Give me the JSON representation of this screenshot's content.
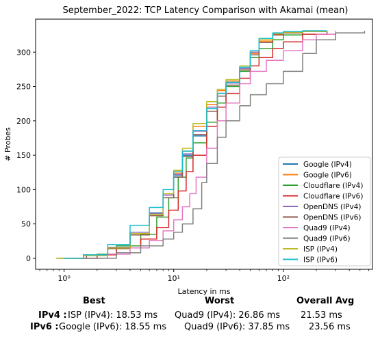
{
  "chart_data": {
    "type": "line",
    "title": "September_2022: TCP Latency Comparison with Akamai (mean)",
    "xlabel": "Latency in ms",
    "ylabel": "# Probes",
    "xscale": "log",
    "xlim": [
      0.55,
      650
    ],
    "ylim": [
      -16,
      348
    ],
    "x_ticks": [
      {
        "value": 1,
        "label": "10⁰"
      },
      {
        "value": 10,
        "label": "10¹"
      },
      {
        "value": 100,
        "label": "10²"
      }
    ],
    "y_ticks": [
      0,
      50,
      100,
      150,
      200,
      250,
      300
    ],
    "grid": false,
    "legend_position": "lower-right",
    "series": [
      {
        "name": "Google (IPv4)",
        "color": "#1f77b4",
        "points": [
          [
            0.85,
            0
          ],
          [
            1.5,
            5
          ],
          [
            2.5,
            16
          ],
          [
            4,
            38
          ],
          [
            6,
            66
          ],
          [
            8,
            92
          ],
          [
            10,
            120
          ],
          [
            12,
            150
          ],
          [
            15,
            178
          ],
          [
            20,
            218
          ],
          [
            25,
            240
          ],
          [
            30,
            256
          ],
          [
            40,
            278
          ],
          [
            50,
            300
          ],
          [
            60,
            318
          ],
          [
            80,
            327
          ],
          [
            100,
            329
          ],
          [
            150,
            331
          ],
          [
            250,
            331
          ]
        ]
      },
      {
        "name": "Google (IPv6)",
        "color": "#ff7f0e",
        "points": [
          [
            0.9,
            0
          ],
          [
            1.5,
            4
          ],
          [
            2.5,
            15
          ],
          [
            4,
            36
          ],
          [
            6,
            64
          ],
          [
            8,
            92
          ],
          [
            10,
            124
          ],
          [
            12,
            156
          ],
          [
            15,
            192
          ],
          [
            20,
            224
          ],
          [
            25,
            244
          ],
          [
            30,
            258
          ],
          [
            40,
            276
          ],
          [
            50,
            298
          ],
          [
            60,
            316
          ],
          [
            80,
            326
          ],
          [
            100,
            329
          ],
          [
            150,
            330
          ],
          [
            250,
            331
          ]
        ]
      },
      {
        "name": "Cloudflare (IPv4)",
        "color": "#2ca02c",
        "points": [
          [
            1.3,
            0
          ],
          [
            2,
            6
          ],
          [
            3,
            18
          ],
          [
            5,
            35
          ],
          [
            7,
            60
          ],
          [
            9,
            88
          ],
          [
            11,
            118
          ],
          [
            13,
            146
          ],
          [
            15,
            168
          ],
          [
            20,
            198
          ],
          [
            25,
            226
          ],
          [
            30,
            250
          ],
          [
            40,
            272
          ],
          [
            50,
            292
          ],
          [
            60,
            305
          ],
          [
            80,
            318
          ],
          [
            100,
            325
          ],
          [
            150,
            330
          ],
          [
            250,
            331
          ]
        ]
      },
      {
        "name": "Cloudflare (IPv6)",
        "color": "#d62728",
        "points": [
          [
            1.4,
            0
          ],
          [
            2,
            5
          ],
          [
            3,
            15
          ],
          [
            5,
            28
          ],
          [
            7,
            45
          ],
          [
            9,
            70
          ],
          [
            11,
            98
          ],
          [
            13,
            126
          ],
          [
            15,
            150
          ],
          [
            20,
            192
          ],
          [
            25,
            220
          ],
          [
            30,
            240
          ],
          [
            40,
            262
          ],
          [
            50,
            280
          ],
          [
            60,
            292
          ],
          [
            80,
            305
          ],
          [
            100,
            315
          ],
          [
            150,
            326
          ],
          [
            250,
            331
          ]
        ]
      },
      {
        "name": "OpenDNS (IPv4)",
        "color": "#9467bd",
        "points": [
          [
            0.9,
            0
          ],
          [
            1.5,
            5
          ],
          [
            2.5,
            16
          ],
          [
            4,
            38
          ],
          [
            6,
            65
          ],
          [
            8,
            92
          ],
          [
            10,
            122
          ],
          [
            12,
            152
          ],
          [
            15,
            185
          ],
          [
            20,
            220
          ],
          [
            25,
            240
          ],
          [
            30,
            255
          ],
          [
            40,
            276
          ],
          [
            50,
            300
          ],
          [
            60,
            318
          ],
          [
            80,
            327
          ],
          [
            100,
            329
          ],
          [
            150,
            330
          ],
          [
            250,
            331
          ]
        ]
      },
      {
        "name": "OpenDNS (IPv6)",
        "color": "#8c564b",
        "points": [
          [
            1,
            0
          ],
          [
            1.6,
            4
          ],
          [
            2.5,
            14
          ],
          [
            4,
            34
          ],
          [
            6,
            62
          ],
          [
            8,
            88
          ],
          [
            10,
            118
          ],
          [
            12,
            148
          ],
          [
            15,
            180
          ],
          [
            20,
            214
          ],
          [
            25,
            236
          ],
          [
            30,
            252
          ],
          [
            40,
            274
          ],
          [
            50,
            296
          ],
          [
            60,
            314
          ],
          [
            80,
            325
          ],
          [
            100,
            328
          ],
          [
            150,
            330
          ],
          [
            250,
            331
          ]
        ]
      },
      {
        "name": "Quad9 (IPv4)",
        "color": "#e377c2",
        "points": [
          [
            1.5,
            0
          ],
          [
            2.5,
            6
          ],
          [
            4,
            15
          ],
          [
            6,
            26
          ],
          [
            8,
            40
          ],
          [
            10,
            56
          ],
          [
            12,
            75
          ],
          [
            14,
            94
          ],
          [
            16,
            118
          ],
          [
            20,
            160
          ],
          [
            25,
            200
          ],
          [
            30,
            226
          ],
          [
            40,
            254
          ],
          [
            50,
            272
          ],
          [
            70,
            288
          ],
          [
            100,
            302
          ],
          [
            150,
            318
          ],
          [
            200,
            326
          ],
          [
            300,
            331
          ]
        ]
      },
      {
        "name": "Quad9 (IPv6)",
        "color": "#7f7f7f",
        "points": [
          [
            1.5,
            0
          ],
          [
            3,
            8
          ],
          [
            5,
            18
          ],
          [
            8,
            28
          ],
          [
            10,
            38
          ],
          [
            12,
            50
          ],
          [
            15,
            72
          ],
          [
            18,
            110
          ],
          [
            20,
            138
          ],
          [
            25,
            176
          ],
          [
            30,
            200
          ],
          [
            40,
            222
          ],
          [
            50,
            238
          ],
          [
            70,
            254
          ],
          [
            100,
            272
          ],
          [
            150,
            298
          ],
          [
            200,
            318
          ],
          [
            300,
            328
          ],
          [
            550,
            331
          ]
        ]
      },
      {
        "name": "ISP (IPv4)",
        "color": "#bcbd22",
        "points": [
          [
            0.85,
            0
          ],
          [
            1.5,
            4
          ],
          [
            2.5,
            15
          ],
          [
            4,
            36
          ],
          [
            6,
            64
          ],
          [
            8,
            94
          ],
          [
            10,
            128
          ],
          [
            12,
            160
          ],
          [
            15,
            196
          ],
          [
            20,
            228
          ],
          [
            25,
            246
          ],
          [
            30,
            260
          ],
          [
            40,
            280
          ],
          [
            50,
            302
          ],
          [
            60,
            318
          ],
          [
            80,
            327
          ],
          [
            100,
            329
          ],
          [
            150,
            330
          ],
          [
            250,
            331
          ]
        ]
      },
      {
        "name": "ISP (IPv6)",
        "color": "#17becf",
        "points": [
          [
            1,
            0
          ],
          [
            1.5,
            5
          ],
          [
            2.5,
            20
          ],
          [
            4,
            48
          ],
          [
            6,
            74
          ],
          [
            8,
            100
          ],
          [
            10,
            126
          ],
          [
            12,
            156
          ],
          [
            15,
            186
          ],
          [
            20,
            218
          ],
          [
            25,
            240
          ],
          [
            30,
            256
          ],
          [
            40,
            278
          ],
          [
            50,
            302
          ],
          [
            60,
            320
          ],
          [
            80,
            328
          ],
          [
            100,
            330
          ],
          [
            150,
            331
          ],
          [
            250,
            331
          ]
        ]
      }
    ]
  },
  "summary": {
    "headers": {
      "best": "Best",
      "worst": "Worst",
      "avg": "Overall Avg"
    },
    "rows": [
      {
        "label": "IPv4 :",
        "best": "ISP (IPv4): 18.53 ms",
        "worst": "Quad9 (IPv4): 26.86 ms",
        "avg": "21.53 ms"
      },
      {
        "label": "IPv6 :",
        "best": "Google (IPv6): 18.55 ms",
        "worst": "Quad9 (IPv6): 37.85 ms",
        "avg": "23.56 ms"
      }
    ]
  }
}
